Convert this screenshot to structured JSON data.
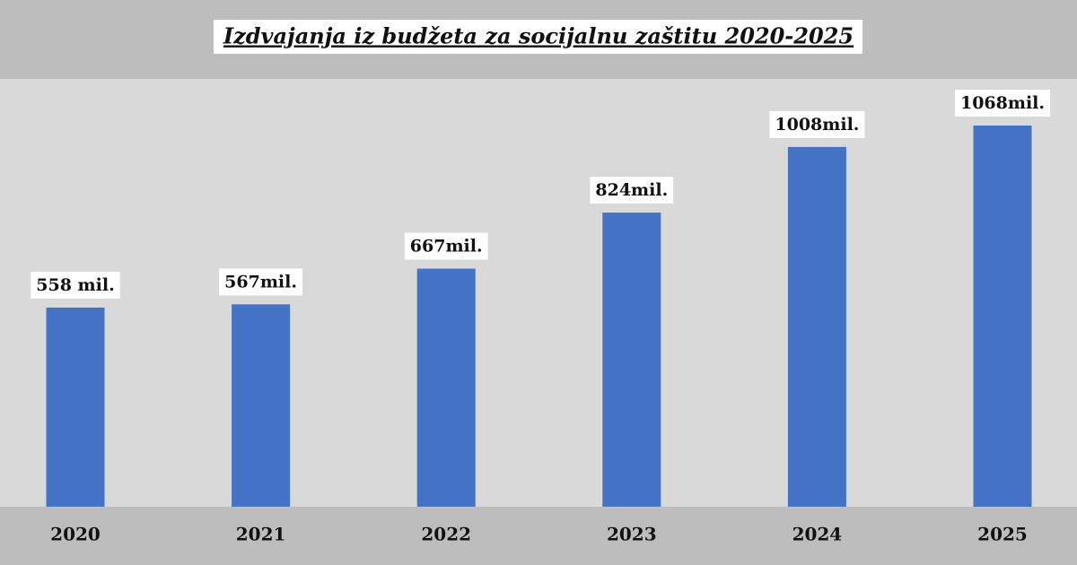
{
  "chart_data": {
    "type": "bar",
    "title": "Izdvajanja iz budžeta za socijalnu zaštitu 2020-2025",
    "categories": [
      "2020",
      "2021",
      "2022",
      "2023",
      "2024",
      "2025"
    ],
    "values": [
      558,
      567,
      667,
      824,
      1008,
      1068
    ],
    "value_labels": [
      "558 mil.",
      "567mil.",
      "667mil.",
      "824mil.",
      "1008mil.",
      "1068mil."
    ],
    "color": "#4472c4"
  }
}
